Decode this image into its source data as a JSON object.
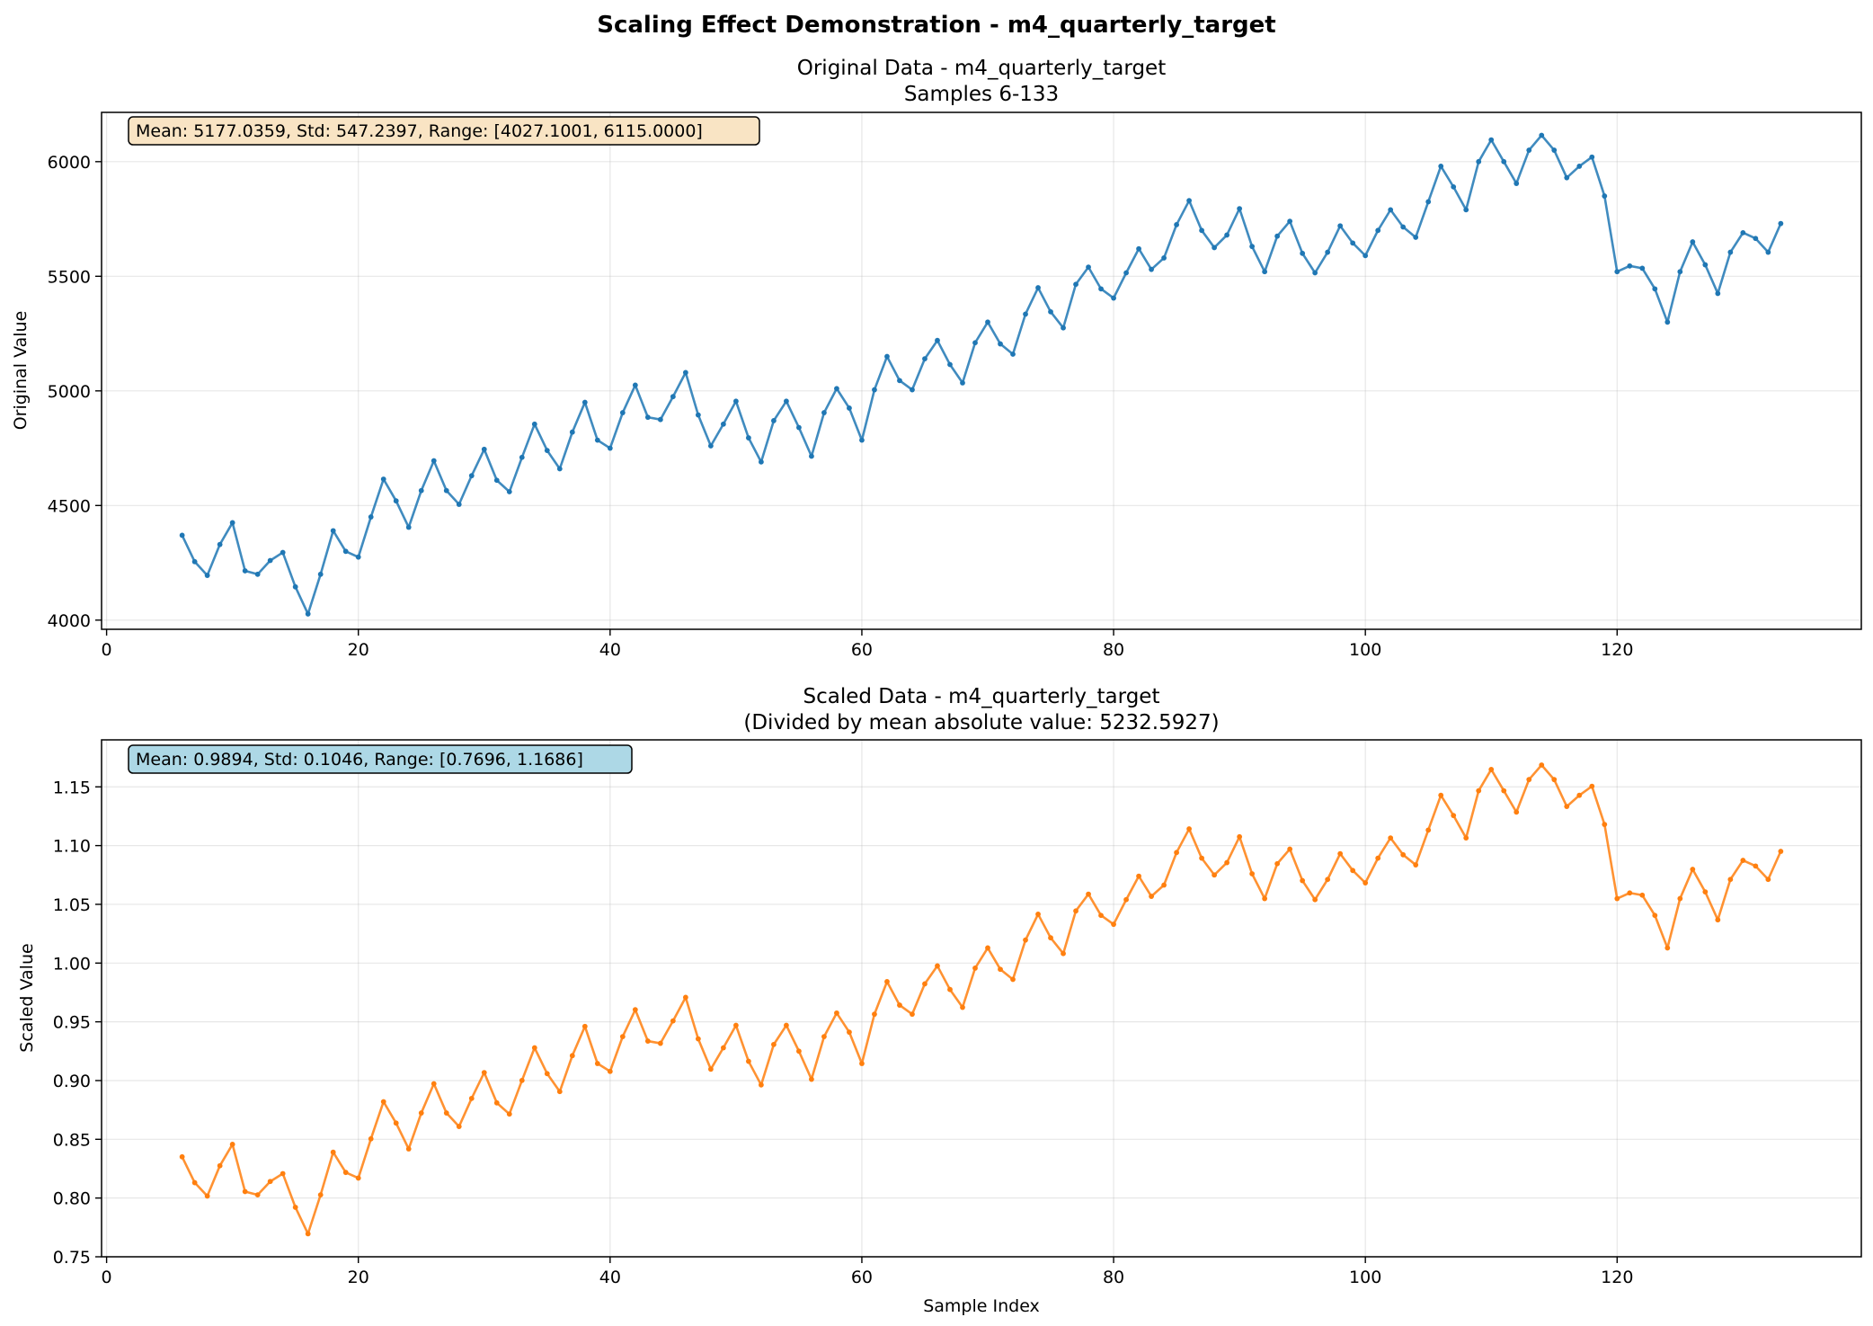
{
  "figure": {
    "suptitle": "Scaling Effect Demonstration - m4_quarterly_target"
  },
  "chart_data": [
    {
      "type": "line",
      "title_line1": "Original Data - m4_quarterly_target",
      "title_line2": "Samples 6-133",
      "xlabel": "",
      "ylabel": "Original Value",
      "xlim": [
        -0.4,
        139.4
      ],
      "ylim": [
        3960,
        6215
      ],
      "xticks": [
        0,
        20,
        40,
        60,
        80,
        100,
        120
      ],
      "yticks": [
        4000,
        4500,
        5000,
        5500,
        6000
      ],
      "grid": true,
      "color": "#1f77b4",
      "stats_box": {
        "text": "Mean: 5177.0359, Std: 547.2397, Range: [4027.1001, 6115.0000]",
        "facecolor": "#f9e4c4",
        "placement": "top-left"
      },
      "x_start": 6,
      "values": [
        4370,
        4255,
        4195,
        4330,
        4425,
        4215,
        4200,
        4260,
        4295,
        4145,
        4027,
        4200,
        4390,
        4300,
        4275,
        4450,
        4615,
        4520,
        4405,
        4565,
        4695,
        4565,
        4505,
        4630,
        4745,
        4610,
        4560,
        4710,
        4855,
        4740,
        4660,
        4820,
        4950,
        4785,
        4750,
        4905,
        5025,
        4885,
        4875,
        4975,
        5080,
        4895,
        4760,
        4855,
        4955,
        4795,
        4690,
        4870,
        4955,
        4840,
        4715,
        4905,
        5010,
        4925,
        4785,
        5005,
        5150,
        5045,
        5005,
        5140,
        5220,
        5115,
        5035,
        5210,
        5300,
        5205,
        5160,
        5335,
        5450,
        5345,
        5275,
        5465,
        5540,
        5445,
        5405,
        5515,
        5620,
        5530,
        5580,
        5725,
        5830,
        5700,
        5625,
        5680,
        5795,
        5630,
        5520,
        5675,
        5740,
        5600,
        5515,
        5605,
        5720,
        5645,
        5590,
        5700,
        5790,
        5715,
        5670,
        5825,
        5980,
        5890,
        5790,
        6000,
        6095,
        6000,
        5905,
        6050,
        6115,
        6050,
        5930,
        5980,
        6020,
        5850,
        5520,
        5545,
        5535,
        5445,
        5300,
        5520,
        5650,
        5550,
        5425,
        5605,
        5690,
        5665,
        5605,
        5730
      ]
    },
    {
      "type": "line",
      "title_line1": "Scaled Data - m4_quarterly_target",
      "title_line2": "(Divided by mean absolute value: 5232.5927)",
      "xlabel": "Sample Index",
      "ylabel": "Scaled Value",
      "xlim": [
        -0.4,
        139.4
      ],
      "ylim": [
        0.75,
        1.19
      ],
      "xticks": [
        0,
        20,
        40,
        60,
        80,
        100,
        120
      ],
      "yticks": [
        0.75,
        0.8,
        0.85,
        0.9,
        0.95,
        1.0,
        1.05,
        1.1,
        1.15
      ],
      "grid": true,
      "color": "#ff7f0e",
      "stats_box": {
        "text": "Mean: 0.9894, Std: 0.1046, Range: [0.7696, 1.1686]",
        "facecolor": "#add8e6",
        "placement": "top-left"
      },
      "x_start": 6,
      "values": [
        0.8351,
        0.8131,
        0.8017,
        0.8275,
        0.8457,
        0.8055,
        0.8027,
        0.8141,
        0.8208,
        0.7921,
        0.7696,
        0.8027,
        0.839,
        0.8218,
        0.817,
        0.8504,
        0.882,
        0.8638,
        0.8418,
        0.8724,
        0.8973,
        0.8724,
        0.8609,
        0.8848,
        0.9068,
        0.881,
        0.8715,
        0.9001,
        0.9279,
        0.9059,
        0.8906,
        0.9212,
        0.9461,
        0.9145,
        0.9078,
        0.9374,
        0.9603,
        0.9336,
        0.9317,
        0.9508,
        0.9708,
        0.9355,
        0.9097,
        0.9279,
        0.947,
        0.9164,
        0.8963,
        0.9307,
        0.947,
        0.925,
        0.9011,
        0.9374,
        0.9575,
        0.9412,
        0.9145,
        0.9565,
        0.9842,
        0.9642,
        0.9565,
        0.9823,
        0.9976,
        0.9775,
        0.9623,
        0.9957,
        1.0129,
        0.9947,
        0.9861,
        1.0196,
        1.0416,
        1.0215,
        1.0081,
        1.0444,
        1.0587,
        1.0406,
        1.033,
        1.054,
        1.074,
        1.0568,
        1.0664,
        1.0941,
        1.1142,
        1.0893,
        1.075,
        1.0855,
        1.1075,
        1.076,
        1.0549,
        1.0846,
        1.097,
        1.0702,
        1.054,
        1.0712,
        1.0931,
        1.0788,
        1.0683,
        1.0893,
        1.1065,
        1.0922,
        1.0836,
        1.1132,
        1.1428,
        1.1256,
        1.1065,
        1.1467,
        1.1648,
        1.1467,
        1.1285,
        1.1562,
        1.1686,
        1.1562,
        1.1333,
        1.1428,
        1.1505,
        1.118,
        1.0549,
        1.0597,
        1.0578,
        1.0406,
        1.0129,
        1.0549,
        1.0798,
        1.0606,
        1.0368,
        1.0712,
        1.0874,
        1.0826,
        1.0712,
        1.0951
      ]
    }
  ]
}
